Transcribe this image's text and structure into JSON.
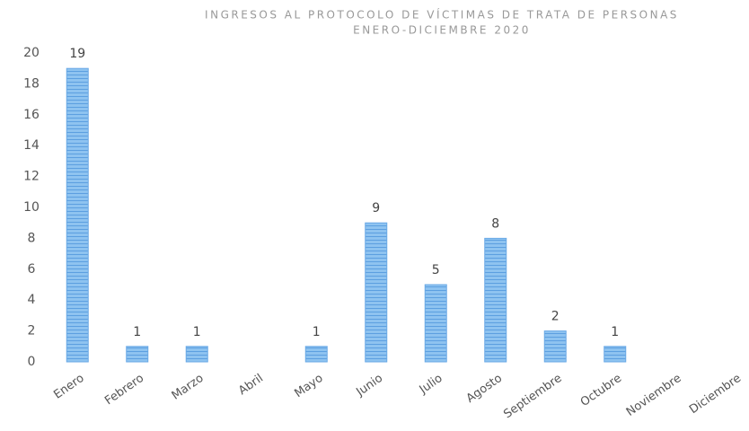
{
  "chart_data": {
    "type": "bar",
    "title": "INGRESOS AL PROTOCOLO DE VÍCTIMAS DE TRATA DE PERSONAS",
    "subtitle": "ENERO-DICIEMBRE 2020",
    "categories": [
      "Enero",
      "Febrero",
      "Marzo",
      "Abril",
      "Mayo",
      "Junio",
      "Julio",
      "Agosto",
      "Septiembre",
      "Octubre",
      "Noviembre",
      "Diciembre"
    ],
    "values": [
      19,
      1,
      1,
      0,
      1,
      9,
      5,
      8,
      2,
      1,
      0,
      0
    ],
    "color": "#8ec3f0",
    "ylim": [
      0,
      20
    ],
    "yticks": [
      0,
      2,
      4,
      6,
      8,
      10,
      12,
      14,
      16,
      18,
      20
    ],
    "grid": false
  }
}
